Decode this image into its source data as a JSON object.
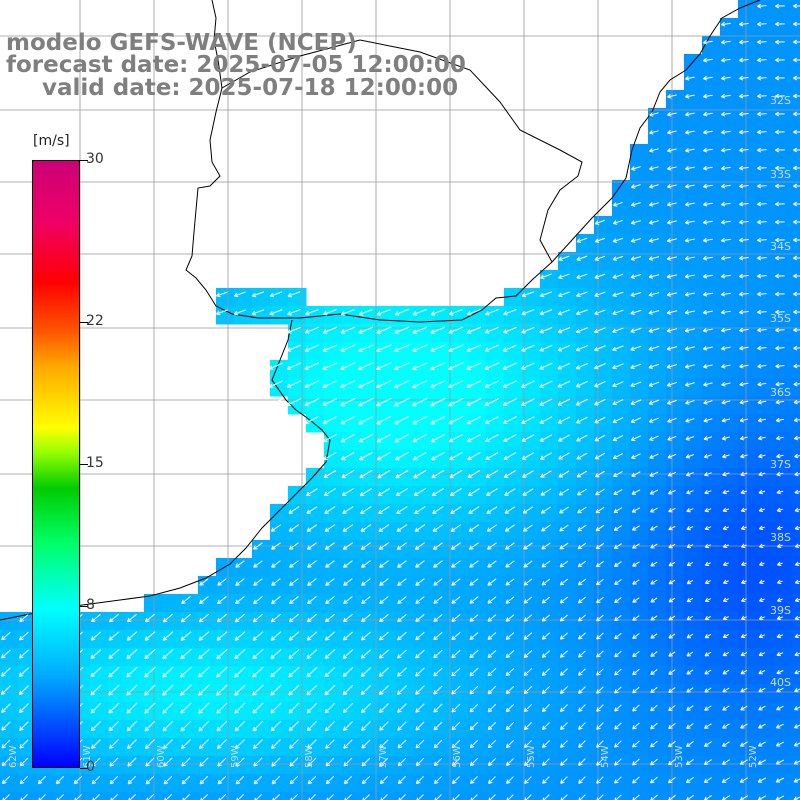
{
  "title": {
    "model": "modelo GEFS-WAVE (NCEP)",
    "forecast": "forecast date: 2025-07-05 12:00:00",
    "valid": "valid date: 2025-07-18 12:00:00"
  },
  "colorbar": {
    "units": "[m/s]",
    "ticks": [
      "30",
      "22",
      "15",
      "8",
      "0"
    ],
    "tick_values": [
      30,
      22,
      15,
      8,
      0
    ],
    "range": [
      0,
      30
    ],
    "colors": [
      "#0000ff",
      "#00aaff",
      "#00ffff",
      "#00ff66",
      "#00cc00",
      "#ffff00",
      "#ff5500",
      "#ff0000",
      "#cc0077"
    ]
  },
  "map": {
    "lat_labels": [
      "32S",
      "33S",
      "34S",
      "35S",
      "36S",
      "37S",
      "38S",
      "39S",
      "40S"
    ],
    "lon_labels": [
      "62W",
      "61W",
      "60W",
      "59W",
      "58W",
      "57W",
      "56W",
      "55W",
      "54W",
      "53W",
      "52W"
    ],
    "land_color": "#ffffff",
    "coast_color": "#000000",
    "grid_color": "#999999",
    "wind_direction": "from north-east, turning north over the south-west of the domain",
    "wind_speed_range_ms": [
      2,
      9
    ]
  }
}
